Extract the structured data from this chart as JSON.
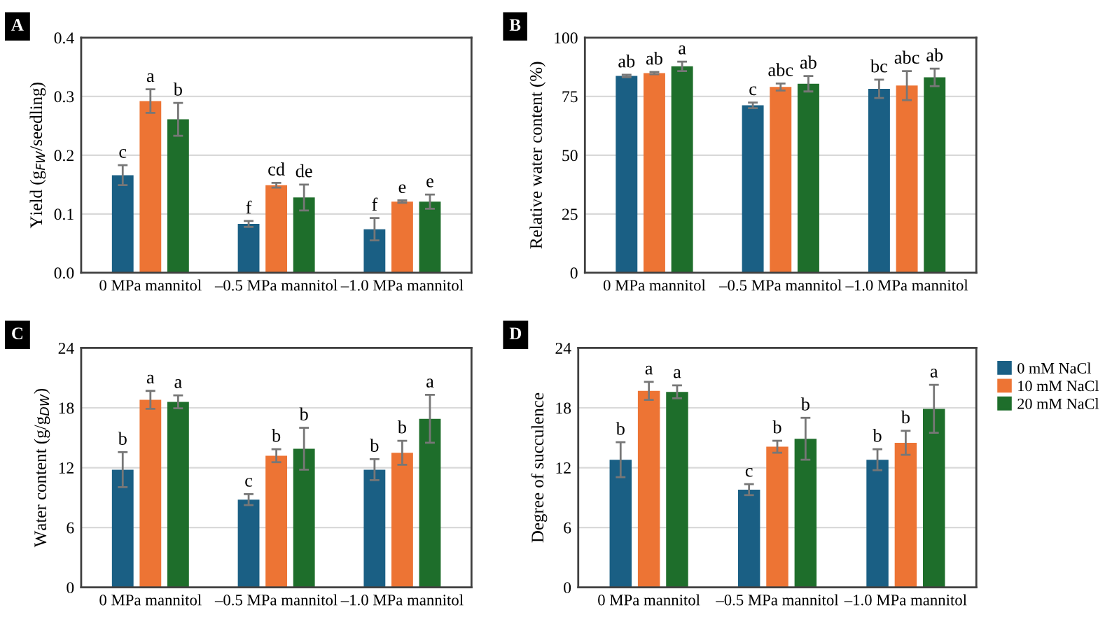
{
  "chart_data": [
    {
      "type": "bar",
      "title": "A",
      "ylabel": "Yield (g$_{FW}$/seedling)",
      "categories": [
        "0 MPa mannitol",
        "–0.5 MPa mannitol",
        "–1.0 MPa mannitol"
      ],
      "ylim": [
        0,
        0.4
      ],
      "yticks": [
        {
          "value": 0,
          "label": "0.0"
        },
        0.1,
        0.2,
        0.3,
        0.4
      ],
      "grid": "y",
      "series": [
        {
          "color": "#1a5f84",
          "values": [
            0.166,
            0.083,
            0.074
          ],
          "errors": [
            0.017,
            0.005,
            0.019
          ],
          "value_labels": [
            "c",
            "f",
            "f"
          ]
        },
        {
          "color": "#ed7434",
          "values": [
            0.292,
            0.149,
            0.121
          ],
          "errors": [
            0.02,
            0.004,
            0.002
          ],
          "value_labels": [
            "a",
            "cd",
            "e"
          ]
        },
        {
          "color": "#1e6e2b",
          "values": [
            0.261,
            0.128,
            0.121
          ],
          "errors": [
            0.028,
            0.022,
            0.012
          ],
          "value_labels": [
            "b",
            "de",
            "e"
          ]
        }
      ]
    },
    {
      "type": "bar",
      "title": "B",
      "ylabel": "Relative water content (%)",
      "categories": [
        "0 MPa mannitol",
        "–0.5 MPa mannitol",
        "–1.0 MPa mannitol"
      ],
      "ylim": [
        0,
        100
      ],
      "yticks": [
        0,
        25,
        50,
        75,
        100
      ],
      "grid": "y",
      "series": [
        {
          "color": "#1a5f84",
          "values": [
            83.7,
            71.2,
            78.2
          ],
          "errors": [
            0.5,
            1.2,
            3.9
          ],
          "value_labels": [
            "ab",
            "c",
            "bc"
          ]
        },
        {
          "color": "#ed7434",
          "values": [
            84.9,
            79.0,
            79.6
          ],
          "errors": [
            0.5,
            1.5,
            6.2
          ],
          "value_labels": [
            "ab",
            "abc",
            "abc"
          ]
        },
        {
          "color": "#1e6e2b",
          "values": [
            87.8,
            80.4,
            83.1
          ],
          "errors": [
            2.0,
            3.3,
            3.7
          ],
          "value_labels": [
            "a",
            "ab",
            "ab"
          ]
        }
      ]
    },
    {
      "type": "bar",
      "title": "C",
      "ylabel": "Water content (g/g$_{DW}$)",
      "categories": [
        "0 MPa mannitol",
        "–0.5 MPa mannitol",
        "–1.0 MPa mannitol"
      ],
      "ylim": [
        0,
        24
      ],
      "yticks": [
        0,
        6,
        12,
        18,
        24
      ],
      "grid": "y",
      "series": [
        {
          "color": "#1a5f84",
          "values": [
            11.8,
            8.8,
            11.8
          ],
          "errors": [
            1.75,
            0.55,
            1.05
          ],
          "value_labels": [
            "b",
            "c",
            "b"
          ]
        },
        {
          "color": "#ed7434",
          "values": [
            18.8,
            13.2,
            13.5
          ],
          "errors": [
            0.9,
            0.65,
            1.2
          ],
          "value_labels": [
            "a",
            "b",
            "b"
          ]
        },
        {
          "color": "#1e6e2b",
          "values": [
            18.6,
            13.9,
            16.9
          ],
          "errors": [
            0.65,
            2.1,
            2.4
          ],
          "value_labels": [
            "a",
            "b",
            "a"
          ]
        }
      ]
    },
    {
      "type": "bar",
      "title": "D",
      "ylabel": "Degree of succulence",
      "categories": [
        "0 MPa mannitol",
        "–0.5 MPa mannitol",
        "–1.0 MPa mannitol"
      ],
      "ylim": [
        0,
        24
      ],
      "yticks": [
        0,
        6,
        12,
        18,
        24
      ],
      "grid": "y",
      "legend": "right",
      "series": [
        {
          "name": "0 mM NaCl",
          "color": "#1a5f84",
          "values": [
            12.8,
            9.8,
            12.8
          ],
          "errors": [
            1.75,
            0.55,
            1.05
          ],
          "value_labels": [
            "b",
            "c",
            "b"
          ]
        },
        {
          "name": "10 mM NaCl",
          "color": "#ed7434",
          "values": [
            19.7,
            14.1,
            14.5
          ],
          "errors": [
            0.9,
            0.6,
            1.2
          ],
          "value_labels": [
            "a",
            "b",
            "b"
          ]
        },
        {
          "name": "20 mM NaCl",
          "color": "#1e6e2b",
          "values": [
            19.6,
            14.9,
            17.9
          ],
          "errors": [
            0.65,
            2.1,
            2.4
          ],
          "value_labels": [
            "a",
            "b",
            "a"
          ]
        }
      ]
    }
  ]
}
